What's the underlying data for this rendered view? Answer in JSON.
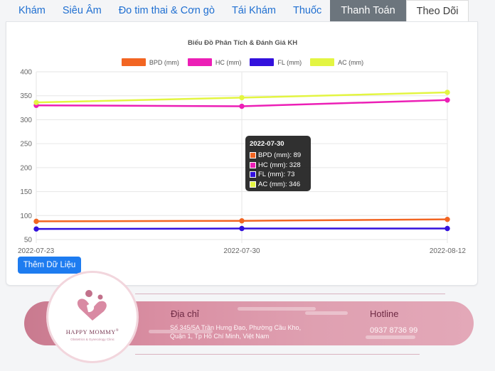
{
  "tabs": [
    {
      "label": "Khám",
      "style": "link"
    },
    {
      "label": "Siêu Âm",
      "style": "link"
    },
    {
      "label": "Đo tim thai & Cơn gò",
      "style": "link"
    },
    {
      "label": "Tái Khám",
      "style": "link"
    },
    {
      "label": "Thuốc",
      "style": "link"
    },
    {
      "label": "Thanh Toán",
      "style": "dark"
    },
    {
      "label": "Theo Dõi",
      "style": "active"
    }
  ],
  "chart_data": {
    "type": "line",
    "title": "Biểu Đồ Phân Tích & Đánh Giá KH",
    "x": [
      "2022-07-23",
      "2022-07-30",
      "2022-08-12"
    ],
    "ylim": [
      50,
      400
    ],
    "yticks": [
      50,
      100,
      150,
      200,
      250,
      300,
      350,
      400
    ],
    "grid": true,
    "legend_position": "top",
    "series": [
      {
        "name": "BPD (mm)",
        "color": "#f26522",
        "values": [
          88,
          89,
          92
        ]
      },
      {
        "name": "HC (mm)",
        "color": "#ec1fb6",
        "values": [
          330,
          328,
          341
        ]
      },
      {
        "name": "FL (mm)",
        "color": "#3311dd",
        "values": [
          72,
          73,
          73
        ]
      },
      {
        "name": "AC (mm)",
        "color": "#e3f542",
        "values": [
          336,
          346,
          357
        ]
      }
    ],
    "tooltip": {
      "title": "2022-07-30",
      "rows": [
        "BPD (mm): 89",
        "HC (mm): 328",
        "FL (mm): 73",
        "AC (mm): 346"
      ]
    }
  },
  "add_button": "Thêm Dữ Liệu",
  "footer": {
    "brand": "HAPPY MOMMY",
    "brand_tagline": "Obstetrics & Gynecology Clinic",
    "address_label": "Địa chỉ",
    "address_line1": "Số 345/5A Trần Hưng Đạo, Phường Cầu Kho,",
    "address_line2": "Quận 1, Tp Hồ Chí Minh, Việt Nam",
    "hotline_label": "Hotline",
    "hotline": "0937 8736 99"
  }
}
